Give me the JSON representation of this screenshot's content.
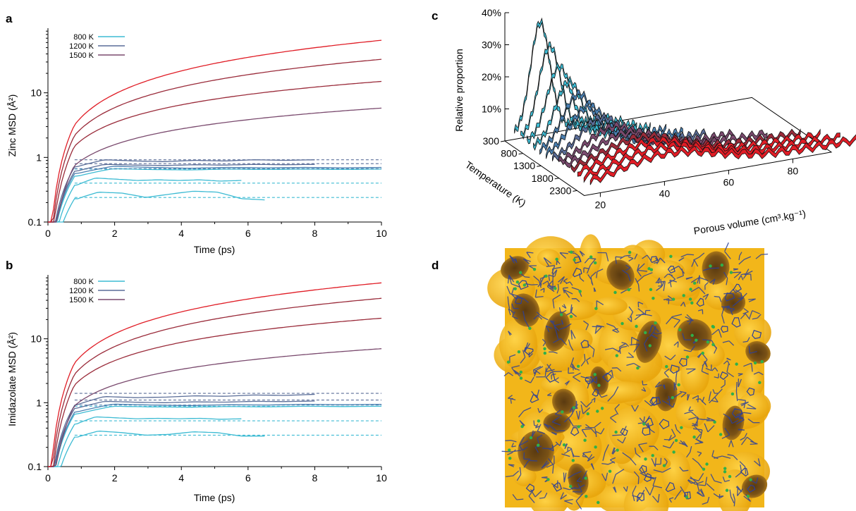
{
  "panels": {
    "a": "a",
    "b": "b",
    "c": "c",
    "d": "d"
  },
  "colors": {
    "cyan": "#3dbbd3",
    "blue": "#4a7fb0",
    "slate": "#5a6d98",
    "mauve": "#7a4a6e",
    "darkred": "#9a2b3a",
    "red": "#e01d26",
    "gold": "#f5b818",
    "bond": "#2c3f99",
    "atom": "#2fb04a"
  },
  "chart_data": [
    {
      "id": "a",
      "type": "line",
      "ylabel": "Zinc MSD (Å²)",
      "xlabel": "Time (ps)",
      "xlim": [
        0,
        10
      ],
      "ylim": [
        0.1,
        100
      ],
      "yscale": "log",
      "xticks": [
        "0",
        "2",
        "4",
        "6",
        "8",
        "10"
      ],
      "yticks": [
        "0.1",
        "1",
        "10"
      ],
      "legend": [
        "800 K",
        "1200 K",
        "1500 K"
      ],
      "legend_position": "top-left",
      "series": [
        {
          "color": "cyan",
          "end": 6.5,
          "y": [
            0.22,
            0.29,
            0.28,
            0.24,
            0.27,
            0.3,
            0.29,
            0.23,
            0.22
          ],
          "plateau": 0.25,
          "dash": 0.24
        },
        {
          "color": "cyan",
          "end": 5.8,
          "y": [
            0.36,
            0.48,
            0.46,
            0.44,
            0.45,
            0.44,
            0.45,
            0.43,
            0.44
          ],
          "plateau": 0.43,
          "dash": 0.4
        },
        {
          "color": "cyan",
          "end": 10,
          "y": [
            0.5,
            0.67,
            0.65,
            0.64,
            0.66,
            0.65,
            0.66,
            0.65,
            0.66
          ],
          "plateau": 0.66,
          "dash": 0.66
        },
        {
          "color": "blue",
          "end": 10,
          "y": [
            0.55,
            0.73,
            0.7,
            0.68,
            0.7,
            0.69,
            0.7,
            0.69,
            0.7
          ],
          "plateau": 0.7,
          "dash": 0.67
        },
        {
          "color": "slate",
          "end": 8,
          "y": [
            0.7,
            0.92,
            0.88,
            0.86,
            0.9,
            0.88,
            0.92,
            0.9,
            0.92
          ],
          "plateau": 0.9,
          "dash": 0.92
        },
        {
          "color": "slate",
          "end": 8,
          "y": [
            0.6,
            0.78,
            0.76,
            0.75,
            0.77,
            0.76,
            0.78,
            0.77,
            0.78
          ],
          "plateau": 0.78,
          "dash": 0.8
        },
        {
          "color": "mauve",
          "end": 10,
          "growth": [
            0.75,
            5.8
          ]
        },
        {
          "color": "darkred",
          "end": 10,
          "growth": [
            1.5,
            15
          ]
        },
        {
          "color": "darkred",
          "end": 10,
          "growth": [
            2.2,
            33
          ]
        },
        {
          "color": "red",
          "end": 10,
          "growth": [
            3.2,
            65
          ]
        }
      ]
    },
    {
      "id": "b",
      "type": "line",
      "ylabel": "Imidazolate MSD (Å²)",
      "xlabel": "Time (ps)",
      "xlim": [
        0,
        10
      ],
      "ylim": [
        0.1,
        100
      ],
      "yscale": "log",
      "xticks": [
        "0",
        "2",
        "4",
        "6",
        "8",
        "10"
      ],
      "yticks": [
        "0.1",
        "1",
        "10"
      ],
      "legend": [
        "800 K",
        "1200 K",
        "1500 K"
      ],
      "legend_position": "top-left",
      "series": [
        {
          "color": "cyan",
          "end": 6.5,
          "y": [
            0.28,
            0.36,
            0.34,
            0.31,
            0.32,
            0.35,
            0.34,
            0.3,
            0.3
          ],
          "plateau": 0.31,
          "dash": 0.31
        },
        {
          "color": "cyan",
          "end": 5.8,
          "y": [
            0.45,
            0.6,
            0.58,
            0.56,
            0.57,
            0.56,
            0.57,
            0.55,
            0.56
          ],
          "plateau": 0.55,
          "dash": 0.52
        },
        {
          "color": "cyan",
          "end": 10,
          "y": [
            0.65,
            0.88,
            0.86,
            0.85,
            0.87,
            0.86,
            0.88,
            0.87,
            0.88
          ],
          "plateau": 0.88,
          "dash": 0.88
        },
        {
          "color": "blue",
          "end": 10,
          "y": [
            0.7,
            0.95,
            0.92,
            0.9,
            0.93,
            0.92,
            0.94,
            0.93,
            0.94
          ],
          "plateau": 0.94,
          "dash": 0.92
        },
        {
          "color": "slate",
          "end": 8,
          "y": [
            0.9,
            1.25,
            1.2,
            1.22,
            1.28,
            1.26,
            1.32,
            1.3,
            1.35
          ],
          "plateau": 1.35,
          "dash": 1.4
        },
        {
          "color": "slate",
          "end": 8,
          "y": [
            0.8,
            1.05,
            1.02,
            1.0,
            1.03,
            1.02,
            1.05,
            1.04,
            1.06
          ],
          "plateau": 1.06,
          "dash": 1.1
        },
        {
          "color": "mauve",
          "end": 10,
          "growth": [
            0.9,
            7.0
          ]
        },
        {
          "color": "darkred",
          "end": 10,
          "growth": [
            1.9,
            21
          ]
        },
        {
          "color": "darkred",
          "end": 10,
          "growth": [
            2.8,
            43
          ]
        },
        {
          "color": "red",
          "end": 10,
          "growth": [
            4.2,
            75
          ]
        }
      ]
    },
    {
      "id": "c",
      "type": "line",
      "xlabel": "Porous volume (cm³.kg⁻¹)",
      "ylabel": "Relative proportion",
      "zlabel": "Temperature (K)",
      "xticks": [
        "20",
        "40",
        "60",
        "80"
      ],
      "yticks": [
        "10%",
        "20%",
        "30%",
        "40%"
      ],
      "zticks": [
        "300",
        "800",
        "1300",
        "1800",
        "2300"
      ],
      "series": [
        {
          "color": "cyan",
          "peak": 0.38,
          "center": 26,
          "width": 3
        },
        {
          "color": "cyan",
          "peak": 0.31,
          "center": 27,
          "width": 3.4
        },
        {
          "color": "cyan",
          "peak": 0.25,
          "center": 28,
          "width": 3.8
        },
        {
          "color": "cyan",
          "peak": 0.21,
          "center": 29,
          "width": 4.2
        },
        {
          "color": "blue",
          "peak": 0.18,
          "center": 30,
          "width": 4.8
        },
        {
          "color": "blue",
          "peak": 0.15,
          "center": 31,
          "width": 5.5
        },
        {
          "color": "slate",
          "peak": 0.12,
          "center": 33,
          "width": 6.5
        },
        {
          "color": "mauve",
          "peak": 0.1,
          "center": 35,
          "width": 8
        },
        {
          "color": "mauve",
          "peak": 0.09,
          "center": 37,
          "width": 10
        },
        {
          "color": "darkred",
          "peak": 0.085,
          "center": 39,
          "width": 12
        },
        {
          "color": "red",
          "peak": 0.08,
          "center": 40,
          "width": 13
        },
        {
          "color": "red",
          "peak": 0.075,
          "center": 41,
          "width": 14
        },
        {
          "color": "red",
          "peak": 0.07,
          "center": 42,
          "width": 15
        }
      ]
    }
  ]
}
